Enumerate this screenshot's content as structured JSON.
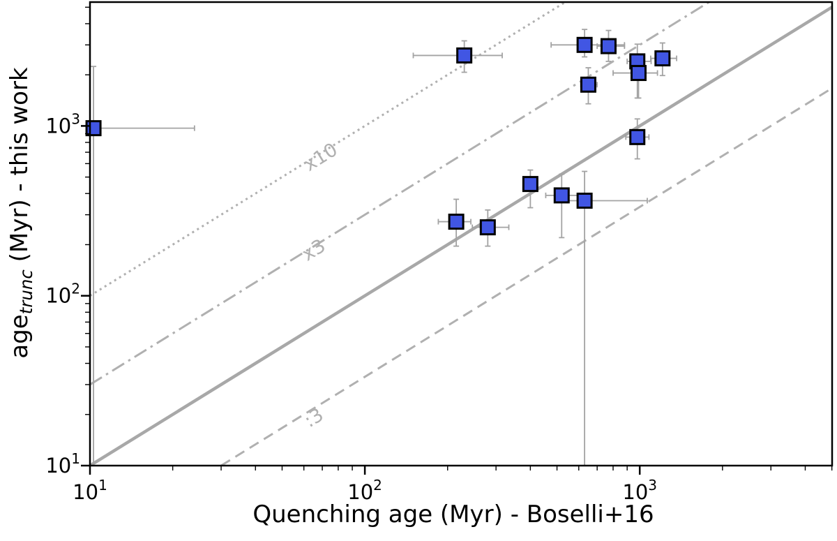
{
  "figure": {
    "background": "#ffffff"
  },
  "chart_data": {
    "type": "scatter",
    "x_scale": "log",
    "y_scale": "log",
    "xlim": [
      10,
      5010
    ],
    "ylim": [
      10,
      5360
    ],
    "xlabel": "Quenching age (Myr) - Boselli+16",
    "ylabel_parts": {
      "prefix": "age",
      "sub": "trunc",
      "suffix": " (Myr) - this work"
    },
    "x_tick_exponents": [
      1,
      2,
      3
    ],
    "y_tick_exponents": [
      1,
      2,
      3
    ],
    "grid": false,
    "legend": false,
    "ref_lines": [
      {
        "factor": 10,
        "style": "dotted",
        "label": "x10",
        "label_at": [
          71,
          610
        ]
      },
      {
        "factor": 3,
        "style": "dashdot",
        "label": "x3",
        "label_at": [
          67,
          173
        ]
      },
      {
        "factor": 1,
        "style": "solid",
        "label": ""
      },
      {
        "factor": 0.3333,
        "style": "dashed",
        "label": ":3",
        "label_at": [
          67,
          17.8
        ]
      }
    ],
    "ref_label_rotation_deg": -31.7,
    "points": [
      {
        "x": 10.3,
        "y": 970,
        "x_err": [
          10,
          24
        ],
        "y_err": [
          10,
          2240
        ]
      },
      {
        "x": 230,
        "y": 2600,
        "x_err": [
          150,
          316
        ],
        "y_err": [
          2070,
          3170
        ]
      },
      {
        "x": 630,
        "y": 3000,
        "x_err": [
          476,
          880
        ],
        "y_err": [
          2550,
          3700
        ]
      },
      {
        "x": 770,
        "y": 2950,
        "x_err": [
          700,
          880
        ],
        "y_err": [
          2400,
          3650
        ]
      },
      {
        "x": 980,
        "y": 2400,
        "x_err": [
          900,
          1100
        ],
        "y_err": [
          1460,
          3030
        ]
      },
      {
        "x": 990,
        "y": 2050,
        "x_err": [
          800,
          1160
        ],
        "y_err": [
          1460,
          2240
        ]
      },
      {
        "x": 1210,
        "y": 2500,
        "x_err": [
          1096,
          1362
        ],
        "y_err": [
          1980,
          3080
        ]
      },
      {
        "x": 650,
        "y": 1750,
        "x_err": [
          610,
          700
        ],
        "y_err": [
          1350,
          2200
        ]
      },
      {
        "x": 980,
        "y": 860,
        "x_err": [
          890,
          1080
        ],
        "y_err": [
          640,
          1100
        ]
      },
      {
        "x": 400,
        "y": 455,
        "x_err": [
          400,
          400
        ],
        "y_err": [
          330,
          550
        ]
      },
      {
        "x": 520,
        "y": 390,
        "x_err": [
          455,
          600
        ],
        "y_err": [
          220,
          520
        ]
      },
      {
        "x": 630,
        "y": 363,
        "x_err": [
          545,
          1065
        ],
        "y_err": [
          10,
          540
        ]
      },
      {
        "x": 215,
        "y": 273,
        "x_err": [
          185,
          243
        ],
        "y_err": [
          196,
          370
        ]
      },
      {
        "x": 280,
        "y": 253,
        "x_err": [
          246,
          334
        ],
        "y_err": [
          196,
          320
        ]
      }
    ],
    "marker": {
      "shape": "square",
      "size": 20,
      "fill": "#4156e3",
      "edge": "#000000",
      "edge_width": 3
    },
    "colors": {
      "axis": "#000000",
      "ref_line": "#b0b0b0",
      "solid_line": "#a8a8a8",
      "error_bar": "#a3a3a3",
      "ref_label": "#b0b0b0",
      "tick_label": "#000000"
    }
  }
}
